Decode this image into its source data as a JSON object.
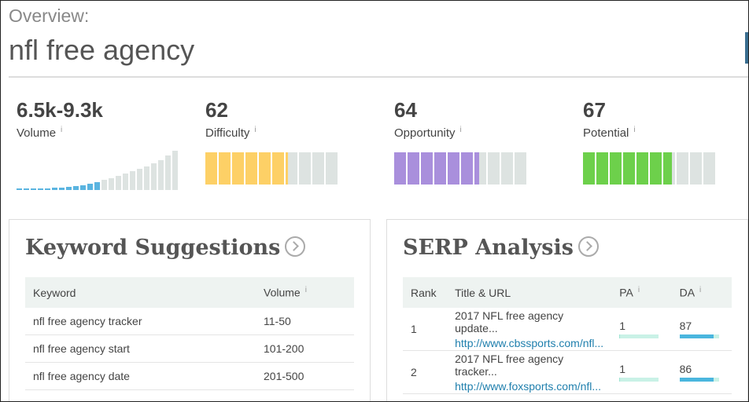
{
  "header": {
    "subtitle": "Overview:",
    "title": "nfl free agency"
  },
  "info_icon": "i",
  "metrics": [
    {
      "value": "6.5k-9.3k",
      "label": "Volume"
    },
    {
      "value": 62,
      "label": "Difficulty",
      "color": "#fdd066"
    },
    {
      "value": 64,
      "label": "Opportunity",
      "color": "#a98fdc"
    },
    {
      "value": 67,
      "label": "Potential",
      "color": "#6dd04b"
    }
  ],
  "keyword_suggestions": {
    "title": "Keyword Suggestions",
    "columns": [
      "Keyword",
      "Volume"
    ],
    "rows": [
      [
        "nfl free agency tracker",
        "11-50"
      ],
      [
        "nfl free agency start",
        "101-200"
      ],
      [
        "nfl free agency date",
        "201-500"
      ]
    ]
  },
  "serp_analysis": {
    "title": "SERP Analysis",
    "columns": [
      "Rank",
      "Title & URL",
      "PA",
      "DA"
    ],
    "rows": [
      {
        "rank": 1,
        "title": "2017 NFL free agency update...",
        "url": "http://www.cbssports.com/nfl...",
        "pa": 1,
        "da": 87
      },
      {
        "rank": 2,
        "title": "2017 NFL free agency tracker...",
        "url": "http://www.foxsports.com/nfl...",
        "pa": 1,
        "da": 86
      }
    ]
  }
}
